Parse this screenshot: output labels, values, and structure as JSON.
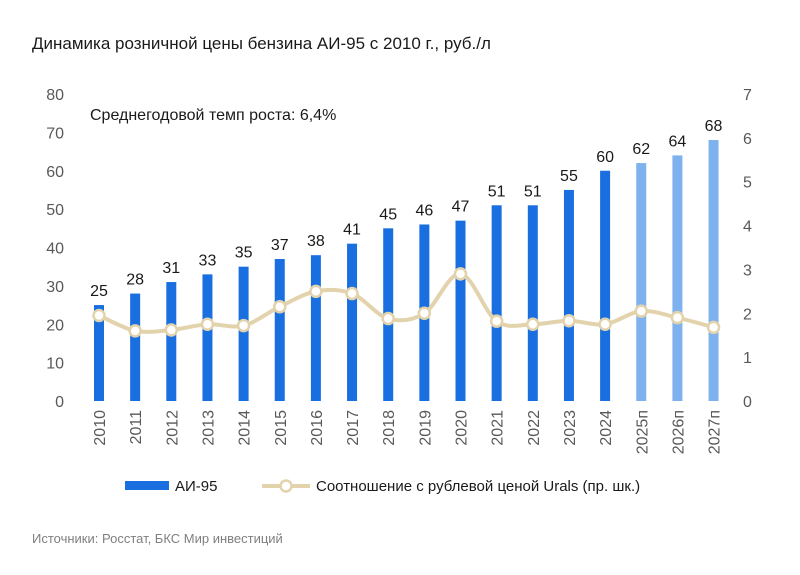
{
  "title": "Динамика розничной цены бензина АИ-95 с 2010 г., руб./л",
  "source": "Источники: Росстат, БКС Мир инвестиций",
  "annotation": "Среднегодовой темп роста: 6,4%",
  "chart_data": {
    "type": "bar",
    "categories": [
      "2010",
      "2011",
      "2012",
      "2013",
      "2014",
      "2015",
      "2016",
      "2017",
      "2018",
      "2019",
      "2020",
      "2021",
      "2022",
      "2023",
      "2024",
      "2025п",
      "2026п",
      "2027п"
    ],
    "forecast_from_index": 15,
    "series": [
      {
        "name": "АИ-95",
        "type": "bar",
        "axis": "left",
        "values": [
          25,
          28,
          31,
          33,
          35,
          37,
          38,
          41,
          45,
          46,
          47,
          51,
          51,
          55,
          60,
          62,
          64,
          68
        ],
        "data_labels": [
          "25",
          "28",
          "31",
          "33",
          "35",
          "37",
          "38",
          "41",
          "45",
          "46",
          "47",
          "51",
          "51",
          "55",
          "60",
          "62",
          "64",
          "68"
        ],
        "color": "#1a6fe0",
        "forecast_color": "#7eb2ee"
      },
      {
        "name": "Соотношение с рублевой ценой Urals (пр. шк.)",
        "type": "line",
        "axis": "right",
        "values": [
          1.95,
          1.6,
          1.62,
          1.75,
          1.72,
          2.15,
          2.5,
          2.45,
          1.88,
          2.0,
          2.9,
          1.82,
          1.75,
          1.83,
          1.75,
          2.05,
          1.9,
          1.68
        ],
        "color": "#e2d3ac"
      }
    ],
    "y_left": {
      "min": 0,
      "max": 80,
      "ticks": [
        "0",
        "10",
        "20",
        "30",
        "40",
        "50",
        "60",
        "70",
        "80"
      ]
    },
    "y_right": {
      "min": 0,
      "max": 7,
      "ticks": [
        "0",
        "1",
        "2",
        "3",
        "4",
        "5",
        "6",
        "7"
      ]
    },
    "grid": false,
    "legend_position": "bottom"
  }
}
